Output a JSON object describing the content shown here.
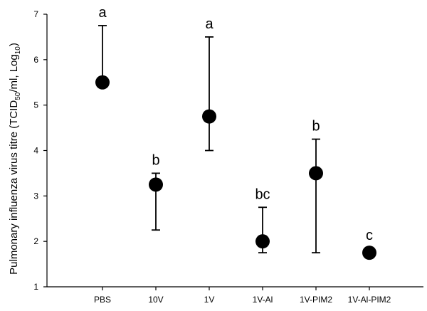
{
  "chart_data": {
    "type": "scatter",
    "title": "",
    "xlabel": "",
    "ylabel": {
      "main": "Pulmonary influenza virus titre (TCID",
      "sub1": "50",
      "mid": "/ml, Log",
      "sub2": "10",
      "end": ")"
    },
    "ylim": [
      1,
      7
    ],
    "yticks": [
      1,
      2,
      3,
      4,
      5,
      6,
      7
    ],
    "categories": [
      "PBS",
      "10V",
      "1V",
      "1V-Al",
      "1V-PIM2",
      "1V-Al-PIM2"
    ],
    "values": [
      5.5,
      3.25,
      4.75,
      2.0,
      3.5,
      1.75
    ],
    "error_low": [
      5.5,
      2.25,
      4.0,
      1.75,
      1.75,
      1.75
    ],
    "error_high": [
      6.75,
      3.5,
      6.5,
      2.75,
      4.25,
      1.75
    ],
    "significance_labels": [
      "a",
      "b",
      "a",
      "bc",
      "b",
      "c"
    ],
    "grid": false,
    "marker_color": "#000000"
  }
}
